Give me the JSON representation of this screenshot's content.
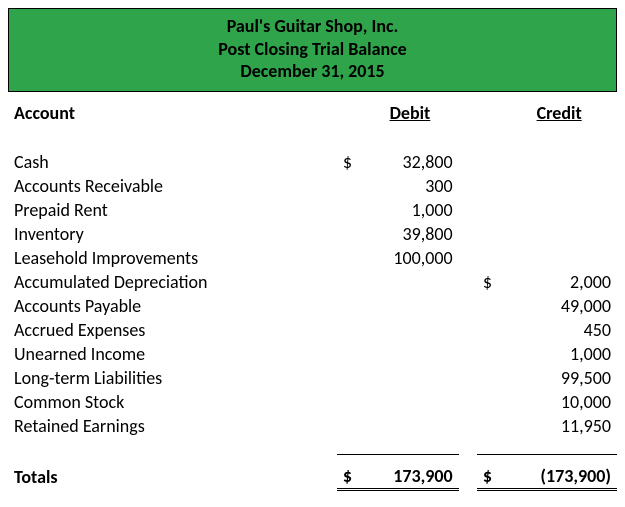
{
  "header": {
    "company": "Paul's Guitar Shop, Inc.",
    "report": "Post Closing Trial Balance",
    "date": "December 31, 2015",
    "background_color": "#2fa44a",
    "text_color": "#000000",
    "fontsize": 18,
    "font_weight": "bold"
  },
  "columns": {
    "account": "Account",
    "debit": "Debit",
    "credit": "Credit"
  },
  "currency_symbol": "$",
  "rows": [
    {
      "account": "Cash",
      "debit": "32,800",
      "credit": "",
      "show_debit_symbol": true,
      "show_credit_symbol": false
    },
    {
      "account": "Accounts Receivable",
      "debit": "300",
      "credit": "",
      "show_debit_symbol": false,
      "show_credit_symbol": false
    },
    {
      "account": "Prepaid Rent",
      "debit": "1,000",
      "credit": "",
      "show_debit_symbol": false,
      "show_credit_symbol": false
    },
    {
      "account": "Inventory",
      "debit": "39,800",
      "credit": "",
      "show_debit_symbol": false,
      "show_credit_symbol": false
    },
    {
      "account": "Leasehold Improvements",
      "debit": "100,000",
      "credit": "",
      "show_debit_symbol": false,
      "show_credit_symbol": false
    },
    {
      "account": "Accumulated Depreciation",
      "debit": "",
      "credit": "2,000",
      "show_debit_symbol": false,
      "show_credit_symbol": true
    },
    {
      "account": "Accounts Payable",
      "debit": "",
      "credit": "49,000",
      "show_debit_symbol": false,
      "show_credit_symbol": false
    },
    {
      "account": "Accrued Expenses",
      "debit": "",
      "credit": "450",
      "show_debit_symbol": false,
      "show_credit_symbol": false
    },
    {
      "account": "Unearned Income",
      "debit": "",
      "credit": "1,000",
      "show_debit_symbol": false,
      "show_credit_symbol": false
    },
    {
      "account": "Long-term Liabilities",
      "debit": "",
      "credit": "99,500",
      "show_debit_symbol": false,
      "show_credit_symbol": false
    },
    {
      "account": "Common Stock",
      "debit": "",
      "credit": "10,000",
      "show_debit_symbol": false,
      "show_credit_symbol": false
    },
    {
      "account": "Retained Earnings",
      "debit": "",
      "credit": "11,950",
      "show_debit_symbol": false,
      "show_credit_symbol": false
    }
  ],
  "totals": {
    "label": "Totals",
    "debit": "173,900",
    "credit": "(173,900)"
  },
  "style": {
    "body_fontsize": 18,
    "font_family": "Calibri, Arial, sans-serif",
    "background_color": "#ffffff",
    "border_color": "#000000",
    "column_widths_pct": {
      "account": 54,
      "sym": 4,
      "debit": 16,
      "gap": 3,
      "sym2": 4,
      "credit": 19
    }
  }
}
